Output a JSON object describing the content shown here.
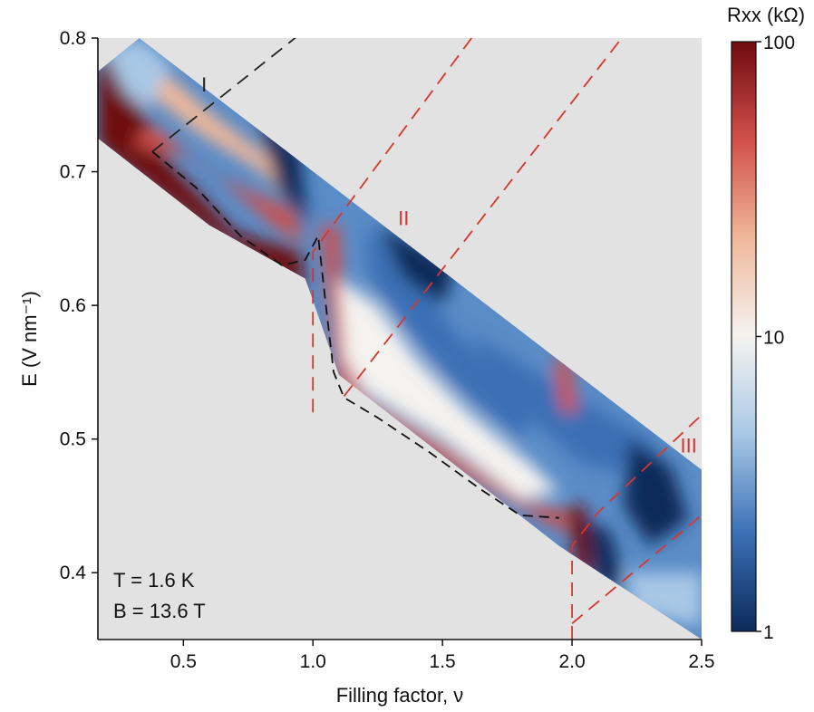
{
  "chart_data": {
    "type": "heatmap",
    "title": "",
    "xlabel": "Filling factor, ν",
    "ylabel": "E (V nm⁻¹)",
    "xlim": [
      0.17,
      2.5
    ],
    "ylim": [
      0.35,
      0.8
    ],
    "xticks": [
      "0.5",
      "1.0",
      "1.5",
      "2.0",
      "2.5"
    ],
    "xtick_values": [
      0.5,
      1.0,
      1.5,
      2.0,
      2.5
    ],
    "yticks": [
      "0.4",
      "0.5",
      "0.6",
      "0.7",
      "0.8"
    ],
    "ytick_values": [
      0.4,
      0.5,
      0.6,
      0.7,
      0.8
    ],
    "background_color": "#e2e2e2",
    "colorbar": {
      "label": "Rxx (kΩ)",
      "scale": "log",
      "range": [
        1,
        100
      ],
      "ticks": [
        "1",
        "10",
        "100"
      ],
      "tick_values": [
        1,
        10,
        100
      ],
      "colors": [
        "#0c2a5a",
        "#3b70b6",
        "#a8c8e6",
        "#f5f3f0",
        "#f0b89a",
        "#d2504a",
        "#6e0a10"
      ]
    },
    "annotations": {
      "temperature": "T = 1.6 K",
      "field": "B = 13.6 T"
    },
    "region_labels": [
      {
        "text": "I",
        "color": "#222222"
      },
      {
        "text": "II",
        "color": "#d9352e"
      },
      {
        "text": "III",
        "color": "#d9352e"
      }
    ],
    "boundary_curve": [
      [
        0.38,
        0.715
      ],
      [
        0.55,
        0.688
      ],
      [
        0.72,
        0.652
      ],
      [
        0.88,
        0.63
      ],
      [
        0.97,
        0.634
      ],
      [
        1.02,
        0.652
      ],
      [
        1.05,
        0.6
      ],
      [
        1.08,
        0.55
      ],
      [
        1.12,
        0.531
      ],
      [
        1.25,
        0.516
      ],
      [
        1.45,
        0.49
      ],
      [
        1.65,
        0.462
      ],
      [
        1.8,
        0.443
      ],
      [
        1.95,
        0.441
      ]
    ],
    "guide_lines": [
      {
        "color": "#222222",
        "points": [
          [
            0.38,
            0.715
          ],
          [
            0.95,
            0.803
          ]
        ]
      },
      {
        "color": "#d9352e",
        "points": [
          [
            1.0,
            0.52
          ],
          [
            1.0,
            0.64
          ],
          [
            1.62,
            0.802
          ]
        ]
      },
      {
        "color": "#d9352e",
        "points": [
          [
            1.12,
            0.532
          ],
          [
            2.2,
            0.802
          ]
        ]
      },
      {
        "color": "#d9352e",
        "points": [
          [
            2.0,
            0.35
          ],
          [
            2.0,
            0.42
          ],
          [
            2.1,
            0.445
          ],
          [
            2.5,
            0.518
          ]
        ]
      },
      {
        "color": "#d9352e",
        "points": [
          [
            2.0,
            0.362
          ],
          [
            2.5,
            0.443
          ]
        ]
      }
    ],
    "data_region": [
      [
        0.17,
        0.775
      ],
      [
        0.33,
        0.8
      ],
      [
        2.5,
        0.477
      ],
      [
        2.5,
        0.35
      ],
      [
        1.95,
        0.42
      ],
      [
        1.1,
        0.548
      ],
      [
        0.97,
        0.62
      ],
      [
        0.6,
        0.66
      ],
      [
        0.17,
        0.725
      ]
    ],
    "grid": false,
    "legend": "colorbar-right"
  }
}
